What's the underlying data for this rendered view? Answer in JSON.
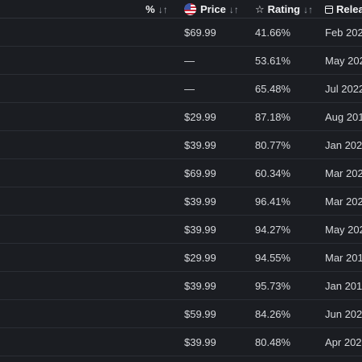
{
  "header": {
    "pct_label": "%",
    "price_label": "Price",
    "rating_label": "Rating",
    "release_label": "Relea",
    "sort_glyph": "↓↑",
    "price_icon": "us-flag-icon",
    "rating_icon": "star-icon",
    "release_icon": "calendar-icon"
  },
  "rows": [
    {
      "price": "$69.99",
      "rating": "41.66%",
      "release": "Feb 202"
    },
    {
      "price": "—",
      "rating": "53.61%",
      "release": "May 202"
    },
    {
      "price": "—",
      "rating": "65.48%",
      "release": "Jul 2022"
    },
    {
      "price": "$29.99",
      "rating": "87.18%",
      "release": "Aug 201"
    },
    {
      "price": "$39.99",
      "rating": "80.77%",
      "release": "Jan 202"
    },
    {
      "price": "$69.99",
      "rating": "60.34%",
      "release": "Mar 202"
    },
    {
      "price": "$39.99",
      "rating": "96.41%",
      "release": "Mar 202"
    },
    {
      "price": "$39.99",
      "rating": "94.27%",
      "release": "May 202"
    },
    {
      "price": "$29.99",
      "rating": "94.55%",
      "release": "Mar 201"
    },
    {
      "price": "$39.99",
      "rating": "95.73%",
      "release": "Jan 2019"
    },
    {
      "price": "$59.99",
      "rating": "84.26%",
      "release": "Jun 202"
    },
    {
      "price": "$39.99",
      "rating": "80.48%",
      "release": "Apr 202"
    }
  ]
}
